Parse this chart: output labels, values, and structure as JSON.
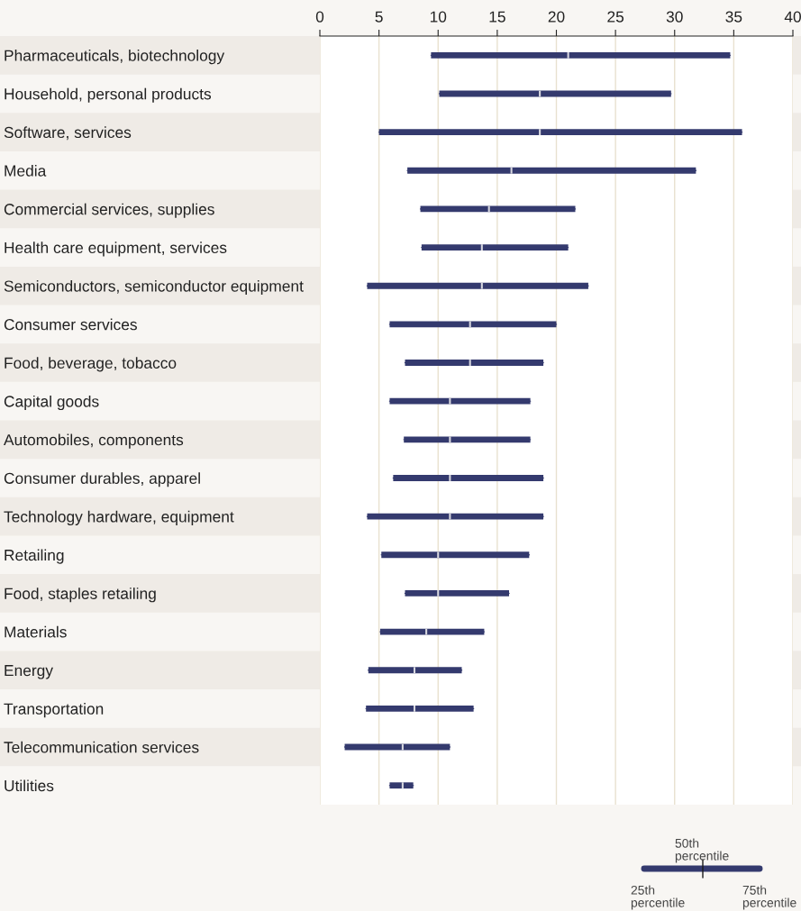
{
  "chart_data": {
    "type": "box",
    "orientation": "horizontal",
    "categories": [
      "Pharmaceuticals, biotechnology",
      "Household, personal products",
      "Software, services",
      "Media",
      "Commercial services, supplies",
      "Health care equipment, services",
      "Semiconductors, semiconductor equipment",
      "Consumer services",
      "Food, beverage, tobacco",
      "Capital goods",
      "Automobiles, components",
      "Consumer durables, apparel",
      "Technology hardware, equipment",
      "Retailing",
      "Food, staples retailing",
      "Materials",
      "Energy",
      "Transportation",
      "Telecommunication services",
      "Utilities"
    ],
    "series": [
      {
        "color": "#343a6e",
        "boxes": [
          {
            "low": 9.4,
            "q1": 9.4,
            "median": 21.0,
            "q3": 34.7,
            "high": 34.7
          },
          {
            "low": 10.1,
            "q1": 10.1,
            "median": 18.6,
            "q3": 29.7,
            "high": 29.7
          },
          {
            "low": 5.0,
            "q1": 5.0,
            "median": 18.6,
            "q3": 35.7,
            "high": 35.7
          },
          {
            "low": 7.4,
            "q1": 7.4,
            "median": 16.2,
            "q3": 31.8,
            "high": 31.8
          },
          {
            "low": 8.5,
            "q1": 8.5,
            "median": 14.3,
            "q3": 21.6,
            "high": 21.6
          },
          {
            "low": 8.6,
            "q1": 8.6,
            "median": 13.7,
            "q3": 21.0,
            "high": 21.0
          },
          {
            "low": 4.0,
            "q1": 4.0,
            "median": 13.7,
            "q3": 22.7,
            "high": 22.7
          },
          {
            "low": 5.9,
            "q1": 5.9,
            "median": 12.7,
            "q3": 20.0,
            "high": 20.0
          },
          {
            "low": 7.2,
            "q1": 7.2,
            "median": 12.7,
            "q3": 18.9,
            "high": 18.9
          },
          {
            "low": 5.9,
            "q1": 5.9,
            "median": 11.0,
            "q3": 17.8,
            "high": 17.8
          },
          {
            "low": 7.1,
            "q1": 7.1,
            "median": 11.0,
            "q3": 17.8,
            "high": 17.8
          },
          {
            "low": 6.2,
            "q1": 6.2,
            "median": 11.0,
            "q3": 18.9,
            "high": 18.9
          },
          {
            "low": 4.0,
            "q1": 4.0,
            "median": 11.0,
            "q3": 18.9,
            "high": 18.9
          },
          {
            "low": 5.2,
            "q1": 5.2,
            "median": 10.0,
            "q3": 17.7,
            "high": 17.7
          },
          {
            "low": 7.2,
            "q1": 7.2,
            "median": 10.0,
            "q3": 16.0,
            "high": 16.0
          },
          {
            "low": 5.1,
            "q1": 5.1,
            "median": 9.0,
            "q3": 13.9,
            "high": 13.9
          },
          {
            "low": 4.1,
            "q1": 4.1,
            "median": 8.0,
            "q3": 12.0,
            "high": 12.0
          },
          {
            "low": 3.9,
            "q1": 3.9,
            "median": 8.0,
            "q3": 13.0,
            "high": 13.0
          },
          {
            "low": 2.1,
            "q1": 2.1,
            "median": 7.0,
            "q3": 11.0,
            "high": 11.0
          },
          {
            "low": 5.9,
            "q1": 5.9,
            "median": 7.0,
            "q3": 7.9,
            "high": 7.9
          }
        ]
      }
    ],
    "xlim": [
      0,
      40
    ],
    "xticks": [
      0,
      5,
      10,
      15,
      20,
      25,
      30,
      35,
      40
    ],
    "grid": "x",
    "annotations": [
      "50th\npercentile",
      "25th\npercentile",
      "75th\npercentile"
    ]
  }
}
